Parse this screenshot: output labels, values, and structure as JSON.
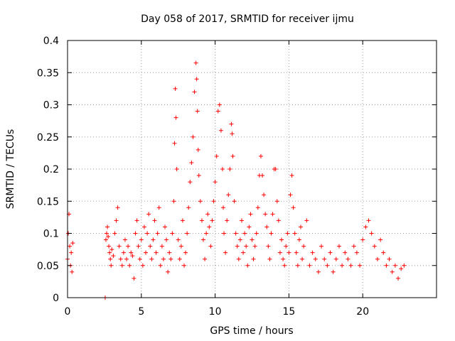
{
  "chart_data": {
    "type": "scatter",
    "title": "Day 058 of 2017, SRMTID for receiver ijmu",
    "xlabel": "GPS time / hours",
    "ylabel": "SRMTID / TECUs",
    "xlim": [
      0,
      25
    ],
    "ylim": [
      0,
      0.4
    ],
    "xticks": [
      0,
      5,
      10,
      15,
      20
    ],
    "xtick_labels": [
      "0",
      "5",
      "10",
      "15",
      "20"
    ],
    "yticks": [
      0,
      0.05,
      0.1,
      0.15,
      0.2,
      0.25,
      0.3,
      0.35,
      0.4
    ],
    "ytick_labels": [
      "0",
      "0.05",
      "0.1",
      "0.15",
      "0.2",
      "0.25",
      "0.3",
      "0.35",
      "0.4"
    ],
    "grid": true,
    "marker": "+",
    "series": [
      {
        "name": "SRMTID",
        "color": "#ff0000",
        "x": [
          0.0,
          0.05,
          0.1,
          0.15,
          0.2,
          0.25,
          0.3,
          0.35,
          2.55,
          2.6,
          2.65,
          2.7,
          2.75,
          2.8,
          2.85,
          2.9,
          2.95,
          3.0,
          3.1,
          3.2,
          3.3,
          3.4,
          3.5,
          3.6,
          3.7,
          3.8,
          3.9,
          4.0,
          4.1,
          4.2,
          4.3,
          4.4,
          4.5,
          4.6,
          4.7,
          4.8,
          4.9,
          5.0,
          5.1,
          5.2,
          5.3,
          5.4,
          5.5,
          5.6,
          5.7,
          5.8,
          5.9,
          6.0,
          6.1,
          6.2,
          6.3,
          6.4,
          6.5,
          6.6,
          6.7,
          6.8,
          6.9,
          7.0,
          7.1,
          7.2,
          7.25,
          7.3,
          7.35,
          7.4,
          7.5,
          7.6,
          7.7,
          7.8,
          7.9,
          8.0,
          8.1,
          8.2,
          8.3,
          8.4,
          8.5,
          8.6,
          8.7,
          8.75,
          8.8,
          8.85,
          8.9,
          9.0,
          9.1,
          9.2,
          9.3,
          9.4,
          9.5,
          9.6,
          9.7,
          9.8,
          9.9,
          10.0,
          10.1,
          10.2,
          10.3,
          10.4,
          10.5,
          10.55,
          10.6,
          10.7,
          10.8,
          10.9,
          11.0,
          11.1,
          11.15,
          11.2,
          11.3,
          11.4,
          11.5,
          11.6,
          11.7,
          11.8,
          11.9,
          12.0,
          12.1,
          12.2,
          12.3,
          12.4,
          12.5,
          12.6,
          12.7,
          12.8,
          12.9,
          13.0,
          13.1,
          13.2,
          13.3,
          13.4,
          13.5,
          13.6,
          13.7,
          13.8,
          13.9,
          14.0,
          14.1,
          14.2,
          14.3,
          14.4,
          14.5,
          14.6,
          14.7,
          14.8,
          14.9,
          15.0,
          15.1,
          15.2,
          15.3,
          15.4,
          15.5,
          15.6,
          15.7,
          15.8,
          15.9,
          16.0,
          16.2,
          16.4,
          16.6,
          16.8,
          17.0,
          17.2,
          17.4,
          17.6,
          17.8,
          18.0,
          18.2,
          18.4,
          18.6,
          18.8,
          19.0,
          19.2,
          19.4,
          19.6,
          19.8,
          20.0,
          20.2,
          20.4,
          20.6,
          20.8,
          21.0,
          21.2,
          21.4,
          21.6,
          21.8,
          22.0,
          22.2,
          22.4,
          22.6,
          22.8
        ],
        "y": [
          0.06,
          0.1,
          0.13,
          0.08,
          0.05,
          0.07,
          0.04,
          0.085,
          0.0,
          0.09,
          0.1,
          0.11,
          0.095,
          0.08,
          0.07,
          0.06,
          0.05,
          0.075,
          0.065,
          0.1,
          0.12,
          0.14,
          0.08,
          0.06,
          0.05,
          0.07,
          0.09,
          0.06,
          0.08,
          0.05,
          0.07,
          0.065,
          0.03,
          0.1,
          0.12,
          0.08,
          0.06,
          0.09,
          0.05,
          0.11,
          0.07,
          0.1,
          0.13,
          0.08,
          0.06,
          0.09,
          0.12,
          0.07,
          0.1,
          0.14,
          0.05,
          0.08,
          0.06,
          0.11,
          0.09,
          0.04,
          0.07,
          0.06,
          0.1,
          0.15,
          0.24,
          0.325,
          0.28,
          0.2,
          0.09,
          0.06,
          0.08,
          0.12,
          0.05,
          0.07,
          0.1,
          0.14,
          0.18,
          0.21,
          0.25,
          0.32,
          0.365,
          0.34,
          0.29,
          0.23,
          0.19,
          0.15,
          0.12,
          0.09,
          0.06,
          0.1,
          0.13,
          0.11,
          0.08,
          0.12,
          0.15,
          0.18,
          0.22,
          0.29,
          0.3,
          0.26,
          0.2,
          0.14,
          0.1,
          0.07,
          0.12,
          0.16,
          0.2,
          0.27,
          0.255,
          0.22,
          0.15,
          0.1,
          0.08,
          0.06,
          0.09,
          0.12,
          0.07,
          0.1,
          0.08,
          0.05,
          0.11,
          0.13,
          0.09,
          0.06,
          0.08,
          0.1,
          0.14,
          0.19,
          0.22,
          0.19,
          0.16,
          0.13,
          0.11,
          0.08,
          0.06,
          0.1,
          0.13,
          0.2,
          0.2,
          0.15,
          0.12,
          0.07,
          0.09,
          0.06,
          0.05,
          0.08,
          0.1,
          0.07,
          0.16,
          0.19,
          0.14,
          0.1,
          0.07,
          0.05,
          0.09,
          0.11,
          0.06,
          0.08,
          0.12,
          0.05,
          0.07,
          0.06,
          0.04,
          0.08,
          0.06,
          0.05,
          0.07,
          0.04,
          0.06,
          0.08,
          0.05,
          0.07,
          0.06,
          0.05,
          0.08,
          0.07,
          0.05,
          0.09,
          0.11,
          0.12,
          0.1,
          0.08,
          0.06,
          0.09,
          0.07,
          0.05,
          0.06,
          0.04,
          0.05,
          0.03,
          0.045,
          0.05
        ]
      }
    ]
  }
}
